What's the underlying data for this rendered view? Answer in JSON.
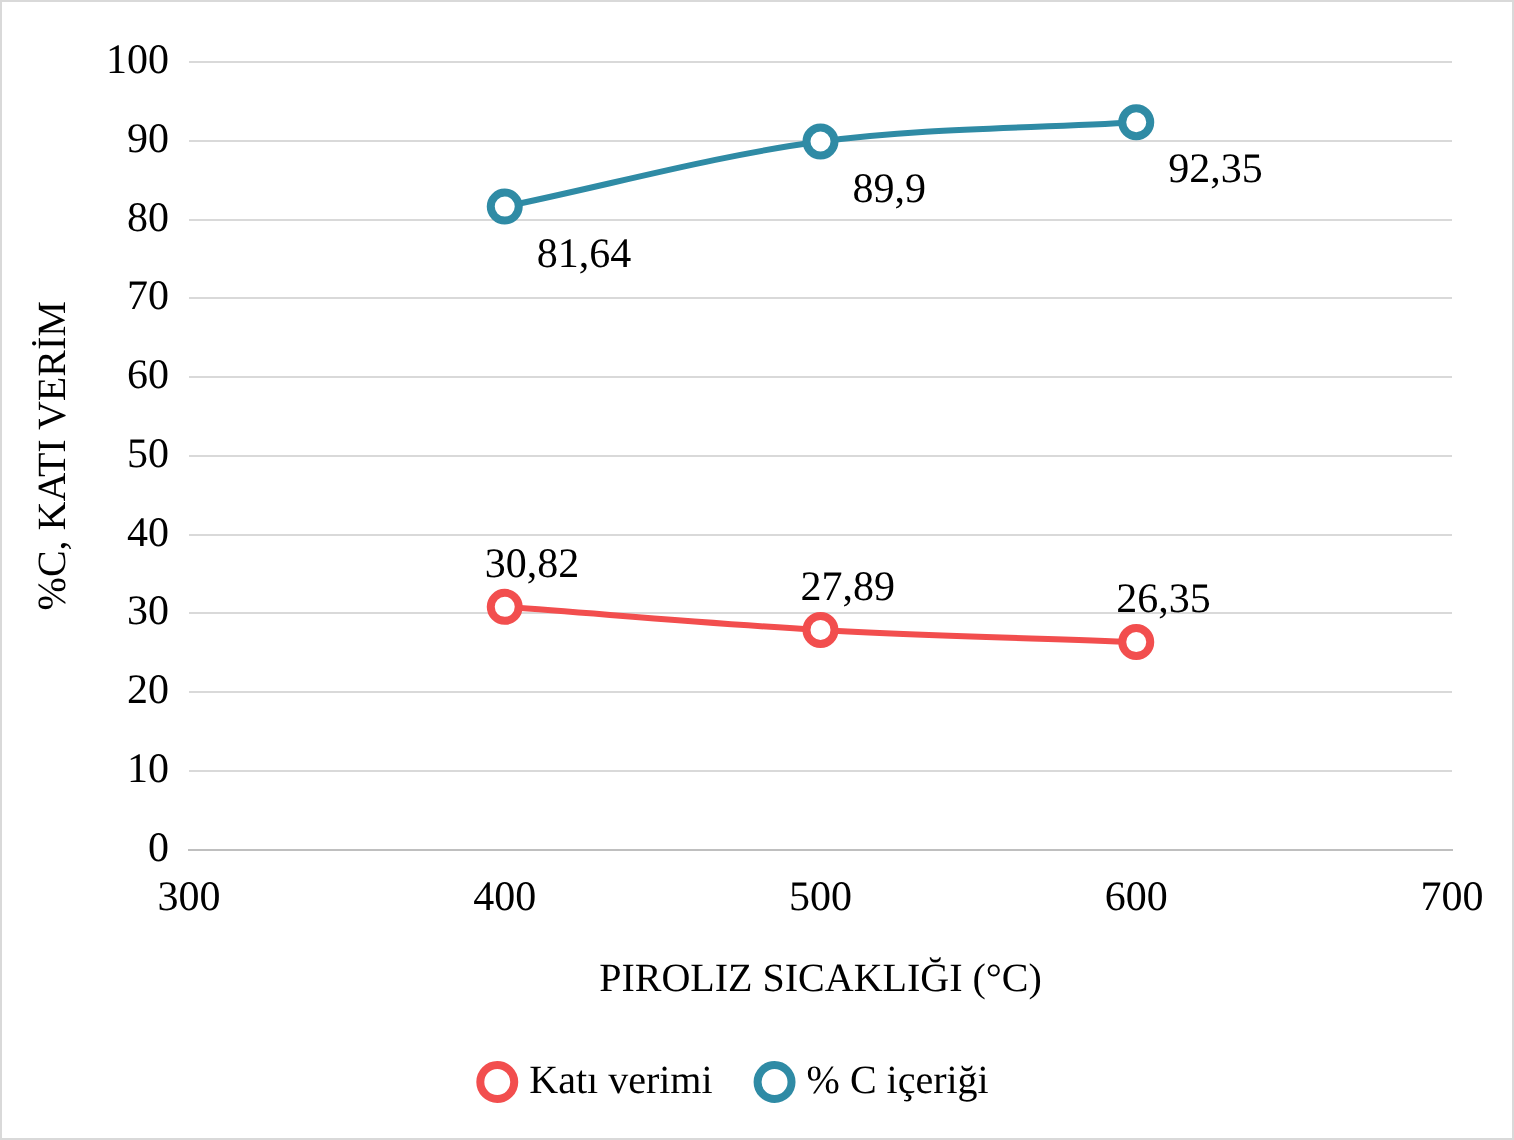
{
  "chart_data": {
    "type": "line",
    "xlabel": "PIROLIZ SICAKLIĞI (°C)",
    "ylabel": "%C, KATI VERİM",
    "x": [
      400,
      500,
      600
    ],
    "series": [
      {
        "name": "Katı verimi",
        "color": "#f24e4e",
        "values": [
          30.82,
          27.89,
          26.35
        ],
        "value_labels": [
          "30,82",
          "27,89",
          "26,35"
        ]
      },
      {
        "name": "% C içeriği",
        "color": "#2f8ba5",
        "values": [
          81.64,
          89.9,
          92.35
        ],
        "value_labels": [
          "81,64",
          "89,9",
          "92,35"
        ]
      }
    ],
    "xlim": [
      300,
      700
    ],
    "xticks": [
      300,
      400,
      500,
      600,
      700
    ],
    "ylim": [
      0,
      100
    ],
    "yticks": [
      0,
      10,
      20,
      30,
      40,
      50,
      60,
      70,
      80,
      90,
      100
    ],
    "grid": "y",
    "legend": "bottom",
    "marker": "circle",
    "line_style": "solid"
  }
}
